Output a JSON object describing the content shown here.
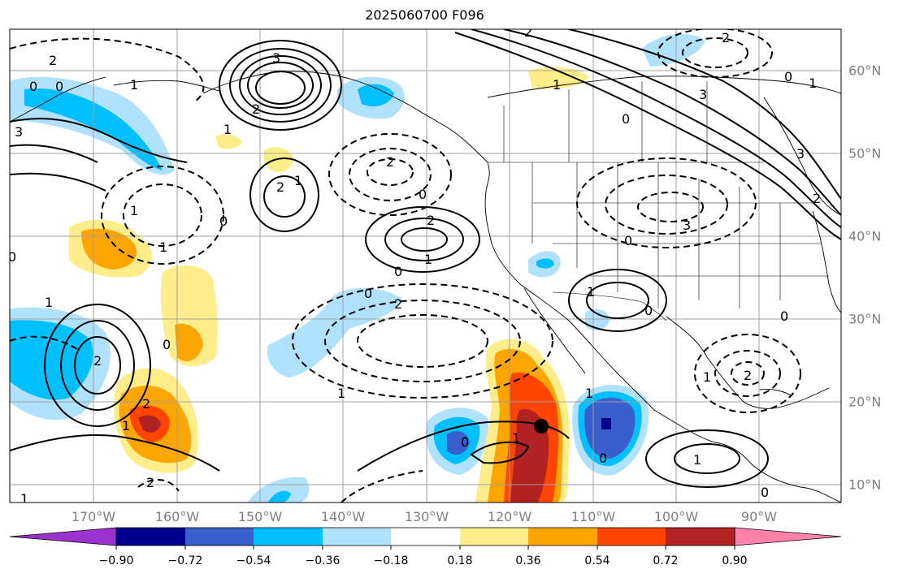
{
  "title": "2025060700 F096",
  "longitude_labels": [
    "170°W",
    "160°W",
    "150°W",
    "140°W",
    "130°W",
    "120°W",
    "110°W",
    "100°W",
    "90°W"
  ],
  "latitude_labels": [
    "60°N",
    "50°N",
    "40°N",
    "30°N",
    "20°N",
    "10°N"
  ],
  "colorbar": {
    "ticks": [
      "−0.90",
      "−0.72",
      "−0.54",
      "−0.36",
      "−0.18",
      "0.18",
      "0.36",
      "0.54",
      "0.72",
      "0.90"
    ],
    "colors": [
      "#9a32cd",
      "#00008b",
      "#3a5fcd",
      "#00bfff",
      "#b0e2ff",
      "#ffffff",
      "#ffec8b",
      "#ffa500",
      "#ff4500",
      "#b22222",
      "#ff82ab"
    ]
  },
  "contour_labels": {
    "solid": [
      "3",
      "2",
      "1",
      "1",
      "2",
      "1",
      "2",
      "1",
      "1",
      "3",
      "2",
      "1",
      "1",
      "1",
      "1",
      "1",
      "1"
    ],
    "dashed": [
      "2",
      "2",
      "3",
      "2",
      "3",
      "0",
      "1",
      "2",
      "1",
      "2",
      "1",
      "1",
      "2",
      "3",
      "2",
      "1",
      "1",
      "2",
      "2"
    ],
    "zero": [
      "0",
      "0",
      "0",
      "0",
      "0",
      "0",
      "0",
      "0",
      "0",
      "0",
      "0",
      "0",
      "0",
      "0",
      "0"
    ]
  },
  "map": {
    "region": "North Pacific / North America",
    "marker": "storm-center-dot"
  }
}
